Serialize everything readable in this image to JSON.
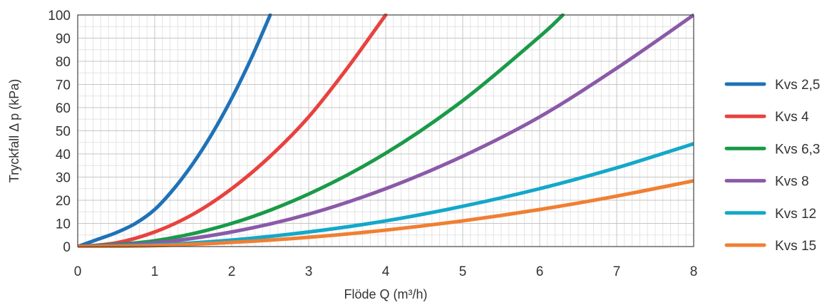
{
  "chart_data": {
    "type": "line",
    "xlabel": "Flöde Q (m³/h)",
    "ylabel": "Tryckfall Δ p (kPa)",
    "xlim": [
      0,
      8
    ],
    "ylim": [
      0,
      100
    ],
    "x_ticks": [
      "0",
      "1",
      "2",
      "3",
      "4",
      "5",
      "6",
      "7",
      "8"
    ],
    "y_ticks": [
      "0",
      "10",
      "20",
      "30",
      "40",
      "50",
      "60",
      "70",
      "80",
      "90",
      "100"
    ],
    "grid": true,
    "legend_position": "right",
    "series": [
      {
        "name": "Kvs 2,5",
        "color": "#1f72b8",
        "points": [
          [
            0,
            0
          ],
          [
            0.25,
            3
          ],
          [
            0.5,
            6
          ],
          [
            0.75,
            10
          ],
          [
            1,
            16
          ],
          [
            1.25,
            25
          ],
          [
            1.5,
            36
          ],
          [
            1.75,
            49
          ],
          [
            2,
            64
          ],
          [
            2.25,
            81
          ],
          [
            2.5,
            100
          ]
        ]
      },
      {
        "name": "Kvs 4",
        "color": "#e8423f",
        "points": [
          [
            0,
            0
          ],
          [
            0.5,
            1.6
          ],
          [
            1,
            6.3
          ],
          [
            1.5,
            14
          ],
          [
            2,
            25
          ],
          [
            2.5,
            39
          ],
          [
            3,
            56
          ],
          [
            3.5,
            77
          ],
          [
            4,
            100
          ]
        ]
      },
      {
        "name": "Kvs 6,3",
        "color": "#1a9a48",
        "points": [
          [
            0,
            0
          ],
          [
            1,
            2.5
          ],
          [
            2,
            10
          ],
          [
            3,
            22.7
          ],
          [
            4,
            40.3
          ],
          [
            5,
            63
          ],
          [
            6,
            90.7
          ],
          [
            6.3,
            100
          ]
        ]
      },
      {
        "name": "Kvs 8",
        "color": "#8a5aa8",
        "points": [
          [
            0,
            0
          ],
          [
            1,
            1.6
          ],
          [
            2,
            6.3
          ],
          [
            3,
            14
          ],
          [
            4,
            25
          ],
          [
            5,
            39
          ],
          [
            6,
            56
          ],
          [
            7,
            77
          ],
          [
            8,
            100
          ]
        ]
      },
      {
        "name": "Kvs 12",
        "color": "#13a8c9",
        "points": [
          [
            0,
            0
          ],
          [
            1,
            0.7
          ],
          [
            2,
            2.8
          ],
          [
            3,
            6.3
          ],
          [
            4,
            11.1
          ],
          [
            5,
            17.4
          ],
          [
            6,
            25
          ],
          [
            7,
            34
          ],
          [
            8,
            44.4
          ]
        ]
      },
      {
        "name": "Kvs 15",
        "color": "#f07f32",
        "points": [
          [
            0,
            0
          ],
          [
            1,
            0.4
          ],
          [
            2,
            1.8
          ],
          [
            3,
            4
          ],
          [
            4,
            7.1
          ],
          [
            5,
            11.1
          ],
          [
            6,
            16
          ],
          [
            7,
            21.8
          ],
          [
            8,
            28.4
          ]
        ]
      }
    ]
  }
}
